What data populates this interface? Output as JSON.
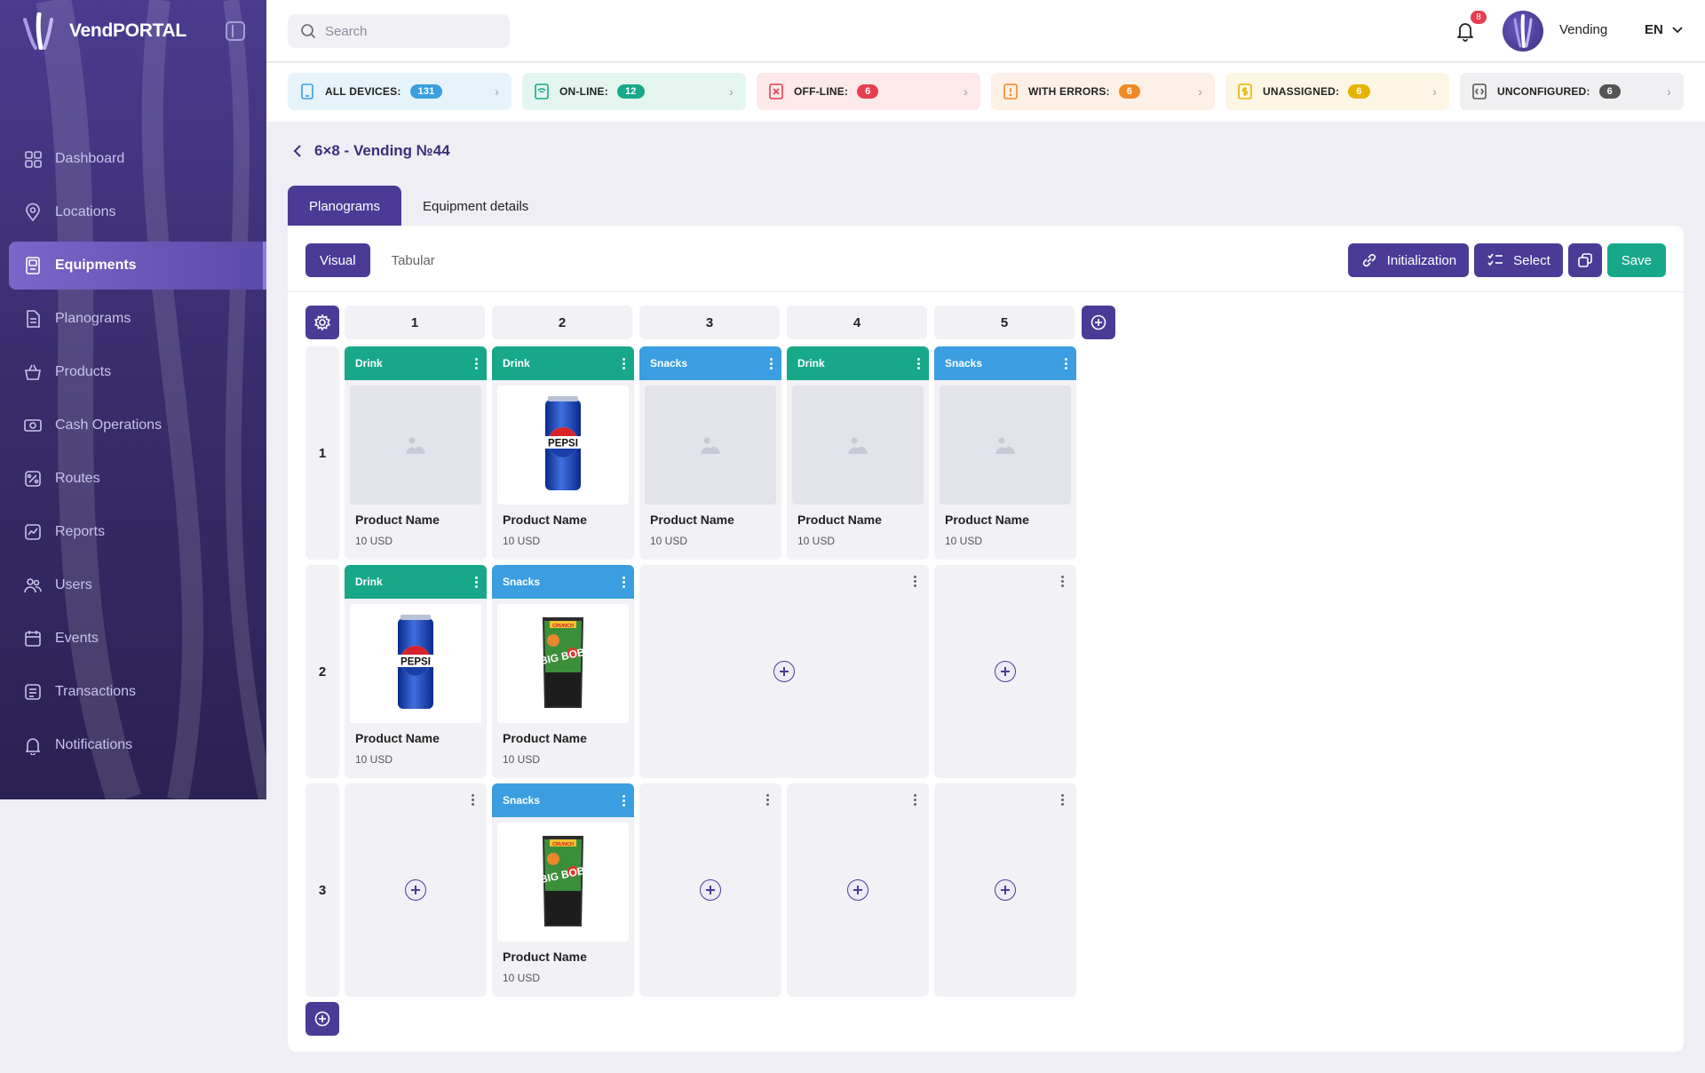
{
  "app": {
    "name": "VendPORTAL"
  },
  "sidebar": {
    "items": [
      {
        "label": "Dashboard",
        "icon": "grid-icon"
      },
      {
        "label": "Locations",
        "icon": "location-pin-icon"
      },
      {
        "label": "Equipments",
        "icon": "vending-machine-icon",
        "active": true
      },
      {
        "label": "Planograms",
        "icon": "document-icon"
      },
      {
        "label": "Products",
        "icon": "basket-icon"
      },
      {
        "label": "Cash Operations",
        "icon": "cash-icon"
      },
      {
        "label": "Routes",
        "icon": "route-icon"
      },
      {
        "label": "Reports",
        "icon": "chart-icon"
      },
      {
        "label": "Users",
        "icon": "users-icon"
      },
      {
        "label": "Events",
        "icon": "calendar-icon"
      },
      {
        "label": "Transactions",
        "icon": "receipt-icon"
      },
      {
        "label": "Notifications",
        "icon": "bell-icon"
      }
    ]
  },
  "header": {
    "search_placeholder": "Search",
    "notifications_count": "8",
    "user_name": "Vending",
    "language": "EN"
  },
  "status": [
    {
      "label": "ALL DEVICES:",
      "count": "131",
      "bg": "#e6f3fb",
      "badge": "#3a9ee0",
      "icon_color": "#3a9ee0"
    },
    {
      "label": "ON-LINE:",
      "count": "12",
      "bg": "#e4f5f0",
      "badge": "#17a889",
      "icon_color": "#17a889"
    },
    {
      "label": "OFF-LINE:",
      "count": "6",
      "bg": "#fde8ea",
      "badge": "#e53e4f",
      "icon_color": "#e53e4f"
    },
    {
      "label": "WITH ERRORS:",
      "count": "6",
      "bg": "#fdf0e6",
      "badge": "#f08a24",
      "icon_color": "#f08a24"
    },
    {
      "label": "UNASSIGNED:",
      "count": "6",
      "bg": "#fdf6e4",
      "badge": "#e6b400",
      "icon_color": "#e6b400"
    },
    {
      "label": "UNCONFIGURED:",
      "count": "6",
      "bg": "#f0f0f3",
      "badge": "#555",
      "icon_color": "#555"
    }
  ],
  "page": {
    "title": "6×8 - Vending №44",
    "tabs": [
      "Planograms",
      "Equipment details"
    ],
    "subtabs": [
      "Visual",
      "Tabular"
    ],
    "actions": {
      "init": "Initialization",
      "select": "Select",
      "save": "Save"
    }
  },
  "planogram": {
    "columns": [
      "1",
      "2",
      "3",
      "4",
      "5"
    ],
    "rows": [
      {
        "label": "1",
        "cells": [
          {
            "category": "Drink",
            "image": "placeholder",
            "name": "Product Name",
            "price": "10 USD"
          },
          {
            "category": "Drink",
            "image": "pepsi",
            "name": "Product Name",
            "price": "10 USD"
          },
          {
            "category": "Snacks",
            "image": "placeholder",
            "name": "Product Name",
            "price": "10 USD"
          },
          {
            "category": "Drink",
            "image": "placeholder",
            "name": "Product Name",
            "price": "10 USD"
          },
          {
            "category": "Snacks",
            "image": "placeholder",
            "name": "Product Name",
            "price": "10 USD"
          }
        ]
      },
      {
        "label": "2",
        "cells": [
          {
            "category": "Drink",
            "image": "pepsi",
            "name": "Product Name",
            "price": "10 USD"
          },
          {
            "category": "Snacks",
            "image": "bigbob",
            "name": "Product Name",
            "price": "10 USD"
          },
          {
            "empty": true,
            "span": 2
          },
          {
            "empty": true
          }
        ]
      },
      {
        "label": "3",
        "cells": [
          {
            "empty": true
          },
          {
            "category": "Snacks",
            "image": "bigbob",
            "name": "Product Name",
            "price": "10 USD"
          },
          {
            "empty": true
          },
          {
            "empty": true
          },
          {
            "empty": true
          }
        ]
      }
    ],
    "image_texts": {
      "pepsi": "PEPSI",
      "bigbob": "BIG BOB",
      "bigbob_top": "CRUNCH"
    }
  }
}
